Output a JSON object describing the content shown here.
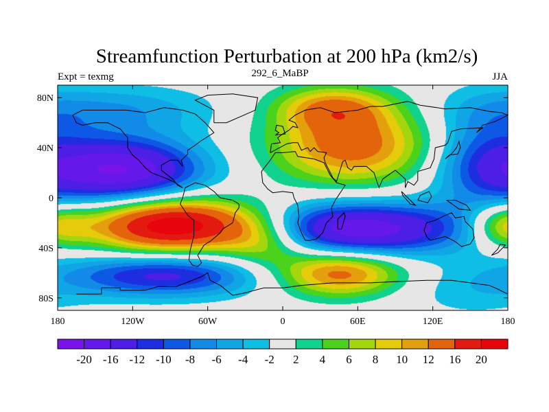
{
  "chart_data": {
    "type": "filled-contour map",
    "title": "Streamfunction Perturbation at 200 hPa (km2/s)",
    "left_label": "Expt = texmg",
    "center_label": "292_6_MaBP",
    "right_label": "JJA",
    "x_axis": {
      "range": [
        -180,
        180
      ],
      "ticks": [
        {
          "value": -180,
          "label": "180"
        },
        {
          "value": -120,
          "label": "120W"
        },
        {
          "value": -60,
          "label": "60W"
        },
        {
          "value": 0,
          "label": "0"
        },
        {
          "value": 60,
          "label": "60E"
        },
        {
          "value": 120,
          "label": "120E"
        },
        {
          "value": 180,
          "label": "180"
        }
      ]
    },
    "y_axis": {
      "range": [
        -90,
        90
      ],
      "ticks": [
        {
          "value": 80,
          "label": "80N"
        },
        {
          "value": 40,
          "label": "40N"
        },
        {
          "value": 0,
          "label": "0"
        },
        {
          "value": -40,
          "label": "40S"
        },
        {
          "value": -80,
          "label": "80S"
        }
      ]
    },
    "contour_levels": [
      -20,
      -16,
      -12,
      -10,
      -8,
      -6,
      -4,
      -2,
      2,
      4,
      6,
      8,
      10,
      12,
      16,
      20
    ],
    "colorbar_labels": [
      "-20",
      "-16",
      "-12",
      "-10",
      "-8",
      "-6",
      "-4",
      "-2",
      "2",
      "4",
      "6",
      "8",
      "10",
      "12",
      "16",
      "20"
    ],
    "colors": [
      "#7a12ea",
      "#6418ea",
      "#4c1ee6",
      "#1c2ee0",
      "#0e58e6",
      "#128ae8",
      "#10a6e6",
      "#0ebee4",
      "#e6e6e6",
      "#10d28c",
      "#4ad21c",
      "#a4d60e",
      "#e4cc0a",
      "#e4a00c",
      "#e4640c",
      "#e21a10",
      "#e8040c"
    ],
    "anomaly_centers": [
      {
        "lon": 55,
        "lat": 42,
        "amp": 14,
        "slon": 45,
        "slat": 22
      },
      {
        "lon": 40,
        "lat": 72,
        "amp": 10,
        "slon": 32,
        "slat": 12
      },
      {
        "lon": -85,
        "lat": -22,
        "amp": 24,
        "slon": 48,
        "slat": 15
      },
      {
        "lon": 45,
        "lat": -60,
        "amp": 14,
        "slon": 35,
        "slat": 13
      },
      {
        "lon": -15,
        "lat": -35,
        "amp": 8,
        "slon": 25,
        "slat": 15
      },
      {
        "lon": 178,
        "lat": -22,
        "amp": 10,
        "slon": 20,
        "slat": 12
      },
      {
        "lon": -130,
        "lat": 22,
        "amp": -20,
        "slon": 45,
        "slat": 18
      },
      {
        "lon": -140,
        "lat": 70,
        "amp": -6,
        "slon": 60,
        "slat": 14
      },
      {
        "lon": 60,
        "lat": -25,
        "amp": -19,
        "slon": 60,
        "slat": 15
      },
      {
        "lon": -95,
        "lat": -62,
        "amp": -13,
        "slon": 55,
        "slat": 12
      },
      {
        "lon": 160,
        "lat": 30,
        "amp": -8,
        "slon": 30,
        "slat": 30
      },
      {
        "lon": 150,
        "lat": -75,
        "amp": -3,
        "slon": 40,
        "slat": 15
      }
    ],
    "coastlines": [
      [
        [
          -165,
          -77
        ],
        [
          -145,
          -77
        ],
        [
          -145,
          -72
        ],
        [
          -130,
          -72
        ],
        [
          -130,
          -74
        ],
        [
          -110,
          -74
        ],
        [
          -100,
          -71
        ],
        [
          -85,
          -71
        ],
        [
          -75,
          -67
        ],
        [
          -65,
          -63
        ],
        [
          -60,
          -60
        ],
        [
          -58,
          -66
        ],
        [
          -50,
          -70
        ],
        [
          -40,
          -78
        ],
        [
          -30,
          -76
        ],
        [
          -15,
          -72
        ],
        [
          0,
          -72
        ],
        [
          15,
          -70
        ],
        [
          40,
          -68
        ],
        [
          70,
          -68
        ],
        [
          90,
          -67
        ],
        [
          115,
          -66
        ],
        [
          135,
          -66
        ],
        [
          150,
          -68
        ],
        [
          165,
          -70
        ],
        [
          172,
          -73
        ],
        [
          180,
          -77
        ]
      ],
      [
        [
          -70,
          12
        ],
        [
          -78,
          8
        ],
        [
          -80,
          0
        ],
        [
          -82,
          -5
        ],
        [
          -76,
          -14
        ],
        [
          -71,
          -18
        ],
        [
          -71,
          -30
        ],
        [
          -74,
          -42
        ],
        [
          -75,
          -50
        ],
        [
          -72,
          -54
        ],
        [
          -68,
          -55
        ],
        [
          -65,
          -52
        ],
        [
          -68,
          -46
        ],
        [
          -63,
          -38
        ],
        [
          -57,
          -34
        ],
        [
          -50,
          -28
        ],
        [
          -48,
          -25
        ],
        [
          -40,
          -20
        ],
        [
          -38,
          -12
        ],
        [
          -35,
          -8
        ],
        [
          -35,
          -5
        ],
        [
          -40,
          -2
        ],
        [
          -50,
          0
        ],
        [
          -55,
          5
        ],
        [
          -62,
          10
        ],
        [
          -70,
          12
        ]
      ],
      [
        [
          -17,
          21
        ],
        [
          -16,
          12
        ],
        [
          -12,
          7
        ],
        [
          -8,
          4
        ],
        [
          0,
          5
        ],
        [
          8,
          4
        ],
        [
          9,
          0
        ],
        [
          12,
          -6
        ],
        [
          13,
          -15
        ],
        [
          12,
          -20
        ],
        [
          15,
          -28
        ],
        [
          18,
          -34
        ],
        [
          22,
          -34
        ],
        [
          27,
          -33
        ],
        [
          32,
          -28
        ],
        [
          35,
          -20
        ],
        [
          40,
          -15
        ],
        [
          39,
          -8
        ],
        [
          42,
          -2
        ],
        [
          50,
          10
        ],
        [
          43,
          12
        ],
        [
          38,
          18
        ],
        [
          33,
          28
        ],
        [
          25,
          31
        ],
        [
          12,
          33
        ],
        [
          10,
          37
        ],
        [
          0,
          36
        ],
        [
          -6,
          36
        ],
        [
          -10,
          30
        ],
        [
          -17,
          21
        ]
      ],
      [
        [
          -10,
          36
        ],
        [
          -9,
          43
        ],
        [
          -2,
          44
        ],
        [
          -4,
          48
        ],
        [
          0,
          51
        ],
        [
          5,
          54
        ],
        [
          8,
          57
        ],
        [
          12,
          56
        ],
        [
          10,
          60
        ],
        [
          5,
          62
        ],
        [
          10,
          66
        ],
        [
          18,
          70
        ],
        [
          30,
          72
        ],
        [
          42,
          68
        ],
        [
          60,
          70
        ],
        [
          70,
          73
        ],
        [
          80,
          73
        ],
        [
          100,
          77
        ],
        [
          110,
          74
        ],
        [
          130,
          71
        ],
        [
          150,
          72
        ],
        [
          165,
          69
        ],
        [
          175,
          68
        ],
        [
          180,
          66
        ],
        [
          170,
          61
        ],
        [
          160,
          58
        ],
        [
          155,
          52
        ],
        [
          160,
          56
        ],
        [
          142,
          55
        ],
        [
          135,
          53
        ],
        [
          132,
          44
        ],
        [
          130,
          42
        ],
        [
          122,
          40
        ],
        [
          121,
          31
        ],
        [
          118,
          24
        ],
        [
          108,
          21
        ],
        [
          108,
          14
        ],
        [
          105,
          10
        ],
        [
          100,
          13
        ],
        [
          98,
          8
        ],
        [
          98,
          15
        ],
        [
          90,
          22
        ],
        [
          80,
          15
        ],
        [
          77,
          8
        ],
        [
          73,
          20
        ],
        [
          67,
          25
        ],
        [
          57,
          25
        ],
        [
          55,
          22
        ],
        [
          52,
          24
        ],
        [
          50,
          30
        ],
        [
          48,
          29
        ],
        [
          43,
          13
        ],
        [
          40,
          16
        ],
        [
          34,
          28
        ],
        [
          33,
          32
        ],
        [
          35,
          36
        ],
        [
          28,
          37
        ],
        [
          25,
          40
        ],
        [
          22,
          37
        ],
        [
          20,
          40
        ],
        [
          15,
          38
        ],
        [
          12,
          44
        ],
        [
          8,
          44
        ],
        [
          3,
          43
        ],
        [
          -10,
          36
        ]
      ],
      [
        [
          115,
          -20
        ],
        [
          122,
          -18
        ],
        [
          128,
          -15
        ],
        [
          135,
          -12
        ],
        [
          138,
          -16
        ],
        [
          145,
          -15
        ],
        [
          146,
          -19
        ],
        [
          152,
          -25
        ],
        [
          153,
          -32
        ],
        [
          150,
          -37
        ],
        [
          143,
          -39
        ],
        [
          138,
          -35
        ],
        [
          130,
          -31
        ],
        [
          118,
          -34
        ],
        [
          115,
          -31
        ],
        [
          113,
          -26
        ],
        [
          115,
          -20
        ]
      ],
      [
        [
          -168,
          66
        ],
        [
          -160,
          70
        ],
        [
          -140,
          70
        ],
        [
          -125,
          70
        ],
        [
          -110,
          68
        ],
        [
          -95,
          72
        ],
        [
          -80,
          70
        ],
        [
          -70,
          67
        ],
        [
          -62,
          60
        ],
        [
          -55,
          52
        ],
        [
          -66,
          45
        ],
        [
          -70,
          42
        ],
        [
          -76,
          38
        ],
        [
          -76,
          35
        ],
        [
          -81,
          30
        ],
        [
          -80,
          25
        ],
        [
          -84,
          30
        ],
        [
          -90,
          30
        ],
        [
          -97,
          26
        ],
        [
          -97,
          22
        ],
        [
          -92,
          18
        ],
        [
          -88,
          15
        ],
        [
          -84,
          10
        ],
        [
          -80,
          8
        ],
        [
          -86,
          12
        ],
        [
          -92,
          15
        ],
        [
          -105,
          20
        ],
        [
          -110,
          24
        ],
        [
          -115,
          30
        ],
        [
          -120,
          34
        ],
        [
          -124,
          40
        ],
        [
          -124,
          48
        ],
        [
          -130,
          55
        ],
        [
          -140,
          60
        ],
        [
          -150,
          60
        ],
        [
          -160,
          58
        ],
        [
          -165,
          60
        ],
        [
          -168,
          66
        ]
      ],
      [
        [
          -55,
          60
        ],
        [
          -45,
          60
        ],
        [
          -22,
          70
        ],
        [
          -20,
          80
        ],
        [
          -40,
          83
        ],
        [
          -60,
          82
        ],
        [
          -70,
          78
        ],
        [
          -55,
          70
        ],
        [
          -55,
          60
        ]
      ],
      [
        [
          -6,
          50
        ],
        [
          2,
          51
        ],
        [
          0,
          57
        ],
        [
          -5,
          58
        ],
        [
          -6,
          54
        ],
        [
          -3,
          52
        ],
        [
          -6,
          50
        ]
      ],
      [
        [
          95,
          5
        ],
        [
          98,
          2
        ],
        [
          106,
          -6
        ],
        [
          102,
          -5
        ],
        [
          96,
          2
        ],
        [
          95,
          5
        ]
      ],
      [
        [
          108,
          -2
        ],
        [
          110,
          2
        ],
        [
          117,
          5
        ],
        [
          119,
          1
        ],
        [
          116,
          -4
        ],
        [
          108,
          -2
        ]
      ],
      [
        [
          131,
          -2
        ],
        [
          138,
          -2
        ],
        [
          147,
          -6
        ],
        [
          150,
          -10
        ],
        [
          141,
          -9
        ],
        [
          134,
          -4
        ],
        [
          131,
          -2
        ]
      ],
      [
        [
          130,
          31
        ],
        [
          133,
          34
        ],
        [
          140,
          35
        ],
        [
          142,
          40
        ],
        [
          141,
          45
        ],
        [
          139,
          40
        ],
        [
          135,
          35
        ],
        [
          130,
          31
        ]
      ],
      [
        [
          167,
          -46
        ],
        [
          172,
          -41
        ],
        [
          174,
          -37
        ],
        [
          178,
          -38
        ],
        [
          172,
          -44
        ],
        [
          167,
          -46
        ]
      ],
      [
        [
          44,
          -25
        ],
        [
          47,
          -25
        ],
        [
          50,
          -15
        ],
        [
          49,
          -12
        ],
        [
          44,
          -17
        ],
        [
          44,
          -25
        ]
      ]
    ]
  }
}
